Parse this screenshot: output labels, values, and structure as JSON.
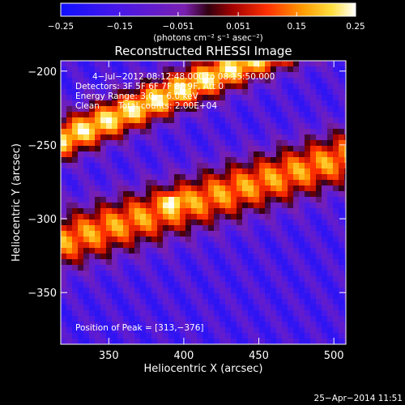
{
  "chart_data": {
    "type": "heatmap",
    "title": "Reconstructed RHESSI Image",
    "xlabel": "Heliocentric X (arcsec)",
    "ylabel": "Heliocentric Y (arcsec)",
    "xlim": [
      318,
      508
    ],
    "ylim": [
      -385,
      -193
    ],
    "x_ticks": [
      350,
      400,
      450,
      500
    ],
    "y_ticks": [
      -200,
      -250,
      -300,
      -350
    ],
    "x_tick_labels": [
      "350",
      "400",
      "450",
      "500"
    ],
    "y_tick_labels": [
      "−200",
      "−250",
      "−300",
      "−350"
    ],
    "colorbar": {
      "range": [
        -0.25,
        0.25
      ],
      "ticks": [
        -0.25,
        -0.15,
        -0.051,
        0.051,
        0.15,
        0.25
      ],
      "tick_labels": [
        "−0.25",
        "−0.15",
        "−0.051",
        "0.051",
        "0.15",
        "0.25"
      ],
      "label": "(photons cm⁻² s⁻¹ asec⁻²)"
    },
    "annotations": {
      "time": "4−Jul−2012 08:12:48.000 to 08:15:50.000",
      "detectors": "Detectors: 3F 5F 6F 7F 8F 9F, Att 0",
      "energy": "Energy Range: 3.0 − 6.0 keV",
      "method": "Clean",
      "counts": "Total counts: 2.00E+04",
      "peak": "Position of Peak = [313,−376]"
    },
    "peak": [
      313,
      -376
    ],
    "grid": false
  },
  "footer": {
    "timestamp": "25−Apr−2014 11:51"
  }
}
